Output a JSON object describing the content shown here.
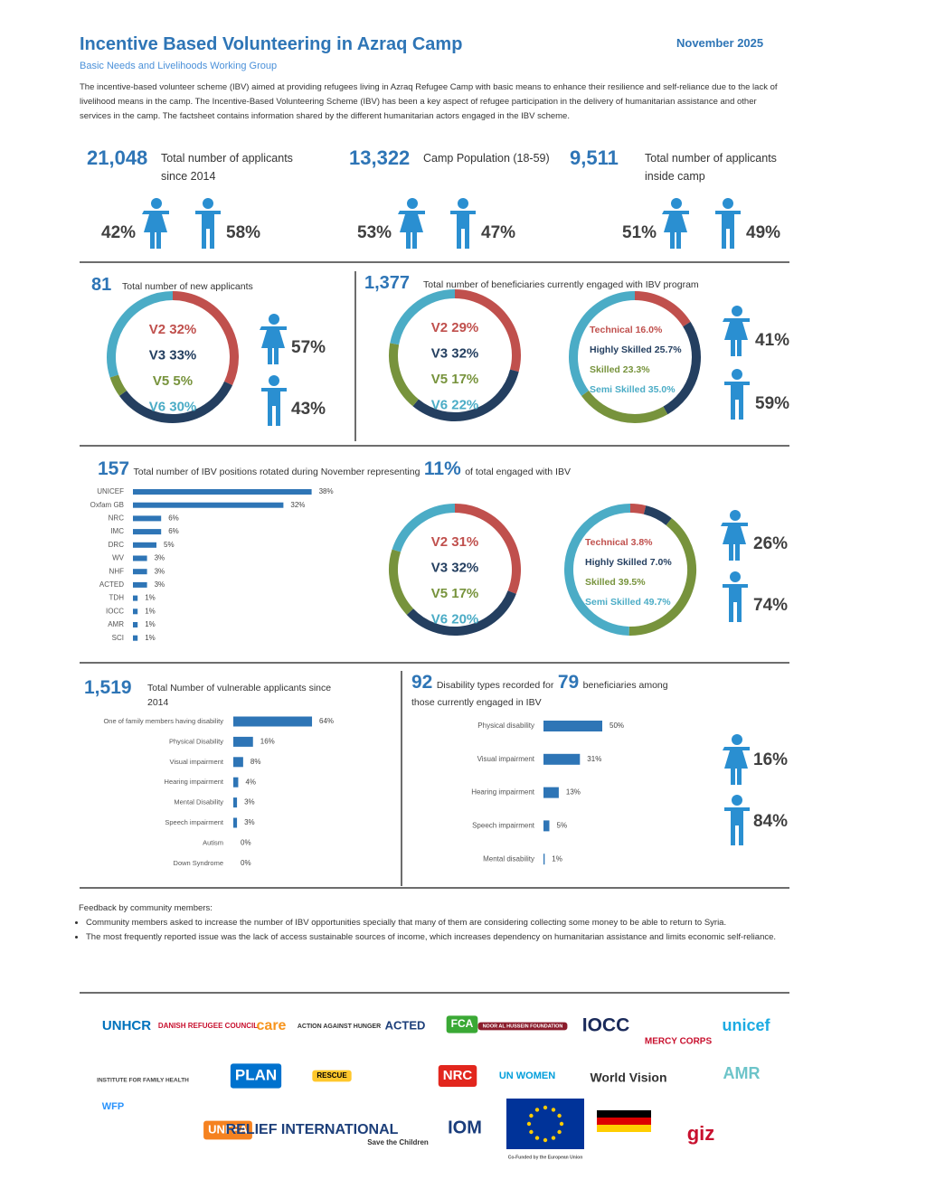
{
  "header": {
    "title": "Incentive Based Volunteering in Azraq Camp",
    "date": "November 2025",
    "subtitle": "Basic Needs and Livelihoods Working Group",
    "intro": "The incentive-based volunteer scheme (IBV) aimed at providing refugees living in Azraq Refugee Camp with basic means to enhance their resilience and self-reliance due to the lack of livelihood means in the camp. The Incentive-Based Volunteering Scheme (IBV) has been a key aspect of refugee participation in the delivery of humanitarian assistance and other services in the camp. The factsheet contains information shared by the different humanitarian actors engaged in the IBV scheme."
  },
  "stats": [
    {
      "value": "21,048",
      "label": "Total number of applicants since 2014",
      "female": "42%",
      "male": "58%"
    },
    {
      "value": "13,322",
      "label": "Camp Population (18-59)",
      "female": "53%",
      "male": "47%"
    },
    {
      "value": "9,511",
      "label": "Total number of applicants inside camp",
      "female": "51%",
      "male": "49%"
    }
  ],
  "new_applicants": {
    "value": "81",
    "label": "Total number of new applicants",
    "levels": {
      "names": [
        "V2",
        "V3",
        "V5",
        "V6"
      ],
      "values": [
        32,
        33,
        5,
        30
      ],
      "value_labels": [
        "32%",
        "33%",
        "5%",
        "30%"
      ],
      "colors": [
        "#c0504d",
        "#243f60",
        "#77933c",
        "#4bacc6"
      ]
    },
    "female": "57%",
    "male": "43%"
  },
  "engaged": {
    "value": "1,377",
    "label": "Total number of beneficiaries currently engaged with IBV program",
    "levels": {
      "names": [
        "V2",
        "V3",
        "V5",
        "V6"
      ],
      "values": [
        29,
        32,
        17,
        22
      ],
      "value_labels": [
        "29%",
        "32%",
        "17%",
        "22%"
      ],
      "colors": [
        "#c0504d",
        "#243f60",
        "#77933c",
        "#4bacc6"
      ]
    },
    "skills": {
      "names": [
        "Technical",
        "Highly Skilled",
        "Skilled",
        "Semi Skilled"
      ],
      "values": [
        16,
        25.7,
        23.3,
        35
      ],
      "value_labels": [
        "16.0%",
        "25.7%",
        "23.3%",
        "35.0%"
      ],
      "colors": [
        "#c0504d",
        "#243f60",
        "#77933c",
        "#4bacc6"
      ]
    },
    "female": "41%",
    "male": "59%"
  },
  "rotations": {
    "value": "157",
    "text1": "Total number of IBV positions rotated during November representing",
    "share": "11%",
    "text2": "of total engaged with IBV",
    "orgs": {
      "categories": [
        "UNICEF",
        "Oxfam GB",
        "NRC",
        "IMC",
        "DRC",
        "WV",
        "NHF",
        "ACTED",
        "TDH",
        "IOCC",
        "AMR",
        "SCI"
      ],
      "values": [
        38,
        32,
        6,
        6,
        5,
        3,
        3,
        3,
        1,
        1,
        1,
        1
      ],
      "value_labels": [
        "38%",
        "32%",
        "6%",
        "6%",
        "5%",
        "3%",
        "3%",
        "3%",
        "1%",
        "1%",
        "1%",
        "1%"
      ],
      "color": "#2e75b6"
    },
    "levels": {
      "names": [
        "V2",
        "V3",
        "V5",
        "V6"
      ],
      "values": [
        31,
        32,
        17,
        20
      ],
      "value_labels": [
        "31%",
        "32%",
        "17%",
        "20%"
      ],
      "colors": [
        "#c0504d",
        "#243f60",
        "#77933c",
        "#4bacc6"
      ]
    },
    "skills": {
      "names": [
        "Technical",
        "Highly Skilled",
        "Skilled",
        "Semi Skilled"
      ],
      "values": [
        3.8,
        7,
        39.5,
        49.7
      ],
      "value_labels": [
        "3.8%",
        "7.0%",
        "39.5%",
        "49.7%"
      ],
      "colors": [
        "#c0504d",
        "#243f60",
        "#77933c",
        "#4bacc6"
      ]
    },
    "female": "26%",
    "male": "74%"
  },
  "vulnerable": {
    "value": "1,519",
    "label": "Total Number of vulnerable applicants since 2014",
    "types": {
      "categories": [
        "One of family members having disability",
        "Physical Disability",
        "Visual impairment",
        "Hearing impairment",
        "Mental Disability",
        "Speech impairment",
        "Autism",
        "Down Syndrome"
      ],
      "values": [
        64,
        16,
        8,
        4,
        3,
        3,
        0,
        0
      ],
      "value_labels": [
        "64%",
        "16%",
        "8%",
        "4%",
        "3%",
        "3%",
        "0%",
        "0%"
      ],
      "color": "#2e75b6"
    }
  },
  "disability": {
    "value": "92",
    "text1": "Disability types recorded for",
    "count": "79",
    "text2": "beneficiaries among those currently engaged in IBV",
    "types": {
      "categories": [
        "Physical disability",
        "Visual impairment",
        "Hearing impairment",
        "Speech impairment",
        "Mental disability"
      ],
      "values": [
        50,
        31,
        13,
        5,
        1
      ],
      "value_labels": [
        "50%",
        "31%",
        "13%",
        "5%",
        "1%"
      ],
      "color": "#2e75b6"
    },
    "female": "16%",
    "male": "84%"
  },
  "feedback": {
    "title": "Feedback by community members:",
    "items": [
      "Community members asked to increase the number of IBV opportunities specially that many of them are considering collecting some money to be able to return to Syria.",
      "The most frequently reported issue was the lack of access sustainable sources of income, which increases dependency on humanitarian assistance and limits economic self-reliance."
    ]
  },
  "partners": [
    "UNHCR",
    "DANISH REFUGEE COUNCIL",
    "care",
    "ACTION AGAINST HUNGER",
    "ACTED",
    "FCA",
    "NOOR AL HUSSEIN FOUNDATION",
    "IOCC",
    "MERCY CORPS",
    "unicef",
    "INSTITUTE FOR FAMILY HEALTH",
    "PLAN",
    "RESCUE",
    "NRC",
    "UN WOMEN",
    "World Vision",
    "AMR",
    "WFP",
    "UNFPA",
    "RELIEF INTERNATIONAL",
    "Save the Children",
    "IOM",
    "Co-Funded by the European Union",
    "giz"
  ]
}
